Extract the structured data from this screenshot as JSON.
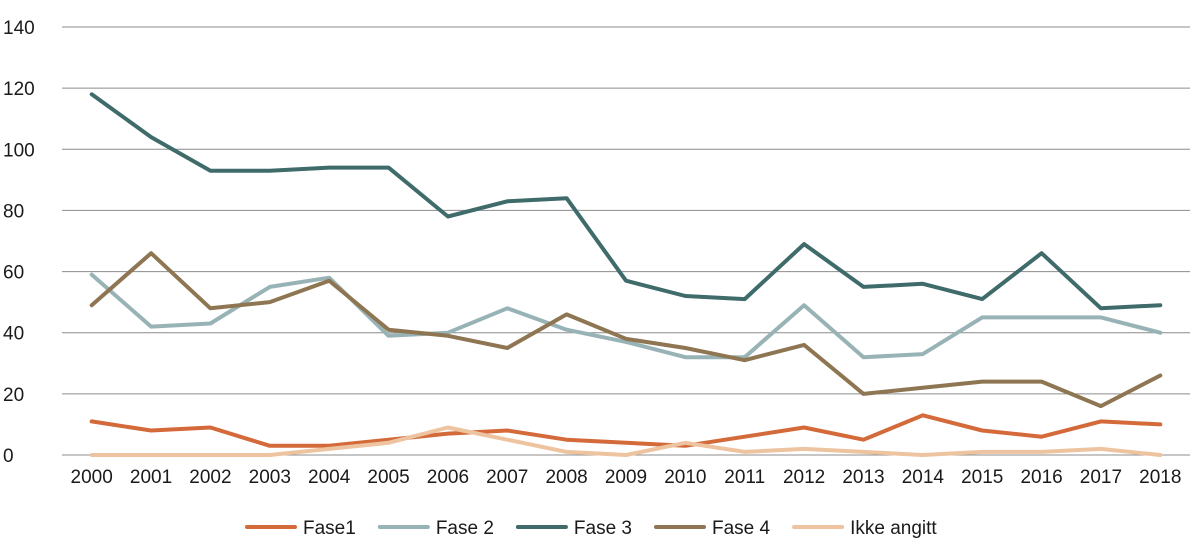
{
  "chart_data": {
    "type": "line",
    "title": "",
    "xlabel": "",
    "ylabel": "",
    "ylim": [
      0,
      140
    ],
    "y_ticks": [
      0,
      20,
      40,
      60,
      80,
      100,
      120,
      140
    ],
    "grid": true,
    "legend_position": "bottom",
    "categories": [
      "2000",
      "2001",
      "2002",
      "2003",
      "2004",
      "2005",
      "2006",
      "2007",
      "2008",
      "2009",
      "2010",
      "2011",
      "2012",
      "2013",
      "2014",
      "2015",
      "2016",
      "2017",
      "2018"
    ],
    "series": [
      {
        "name": "Fase1",
        "color": "#D4693A",
        "values": [
          11,
          8,
          9,
          3,
          3,
          5,
          7,
          8,
          5,
          4,
          3,
          6,
          9,
          5,
          13,
          8,
          6,
          11,
          10
        ]
      },
      {
        "name": "Fase 2",
        "color": "#98B3B5",
        "values": [
          59,
          42,
          43,
          55,
          58,
          39,
          40,
          48,
          41,
          37,
          32,
          32,
          49,
          32,
          33,
          45,
          45,
          45,
          40
        ]
      },
      {
        "name": "Fase 3",
        "color": "#3F6B6A",
        "values": [
          118,
          104,
          93,
          93,
          94,
          94,
          78,
          83,
          84,
          57,
          52,
          51,
          69,
          55,
          56,
          51,
          66,
          48,
          49
        ]
      },
      {
        "name": "Fase 4",
        "color": "#8E7653",
        "values": [
          49,
          66,
          48,
          50,
          57,
          41,
          39,
          35,
          46,
          38,
          35,
          31,
          36,
          20,
          22,
          24,
          24,
          16,
          26
        ]
      },
      {
        "name": "Ikke angitt",
        "color": "#EEC3A0",
        "values": [
          0,
          0,
          0,
          0,
          2,
          4,
          9,
          5,
          1,
          0,
          4,
          1,
          2,
          1,
          0,
          1,
          1,
          2,
          0
        ]
      }
    ]
  }
}
